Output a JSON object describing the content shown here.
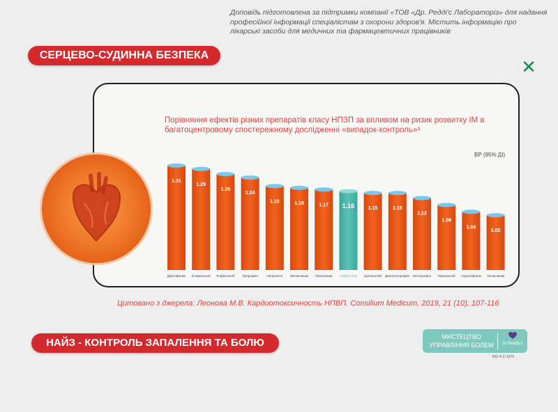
{
  "disclaimer": "Доповідь підготовлена за підтримки компанії «ТОВ «Др. Редді'с Лабораторіз» для надання професійної інформації спеціалістам з охорони здоров'я. Містить інформацію про лікарські засоби для медичних та фармацевтичних працівників",
  "section_title": "СЕРЦЕВО-СУДИННА БЕЗПЕКА",
  "bottom_title": "НАЙЗ - КОНТРОЛЬ ЗАПАЛЕННЯ ТА БОЛЮ",
  "citation": "Цитовано з джерела: Леонова М.В. Кардиотоксичность НПВП. Consilium Medicum, 2019, 21 (10), 107-116",
  "logo": {
    "line1": "МИСТЕЦТВО",
    "line2": "УПРАВЛІННЯ БОЛЕМ",
    "brand": "Dr.Reddy's",
    "code": "NIZ-4-1/-1976"
  },
  "icons": {
    "close": "close-icon",
    "heart": "heart-icon",
    "brand": "heart-logo-icon"
  },
  "colors": {
    "accent": "#d42a2e",
    "bar": "#f0641e",
    "bar_top": "#79c8ea",
    "highlight_bar": "#5cc2b7",
    "close": "#1c8a4a"
  },
  "chart_data": {
    "type": "bar",
    "title": "Порівняння ефектів різних препаратів класу НПЗП за впливом на ризик розвитку ІМ в багатоцентровому спостережному дослідженні «випадок-контроль»³",
    "ylabel": "ВР (95% ДІ)",
    "categories": [
      "Диклофенак",
      "Еторикоксиб",
      "Рофекоксиб",
      "Ібупрофен",
      "Напроксен",
      "Мелоксикам",
      "Піроксикам",
      "НІМЕСУЛІД",
      "Целекоксиб",
      "Декскетопрофен",
      "Кетопрофен",
      "Парекоксиб",
      "Ацеклофенак",
      "Теноксикам"
    ],
    "values": [
      1.31,
      1.29,
      1.26,
      1.24,
      1.19,
      1.18,
      1.17,
      1.16,
      1.15,
      1.15,
      1.12,
      1.08,
      1.04,
      1.02
    ],
    "highlight": "НІМЕСУЛІД",
    "ylim": [
      0.7,
      1.35
    ],
    "grid": false,
    "legend": "none"
  }
}
